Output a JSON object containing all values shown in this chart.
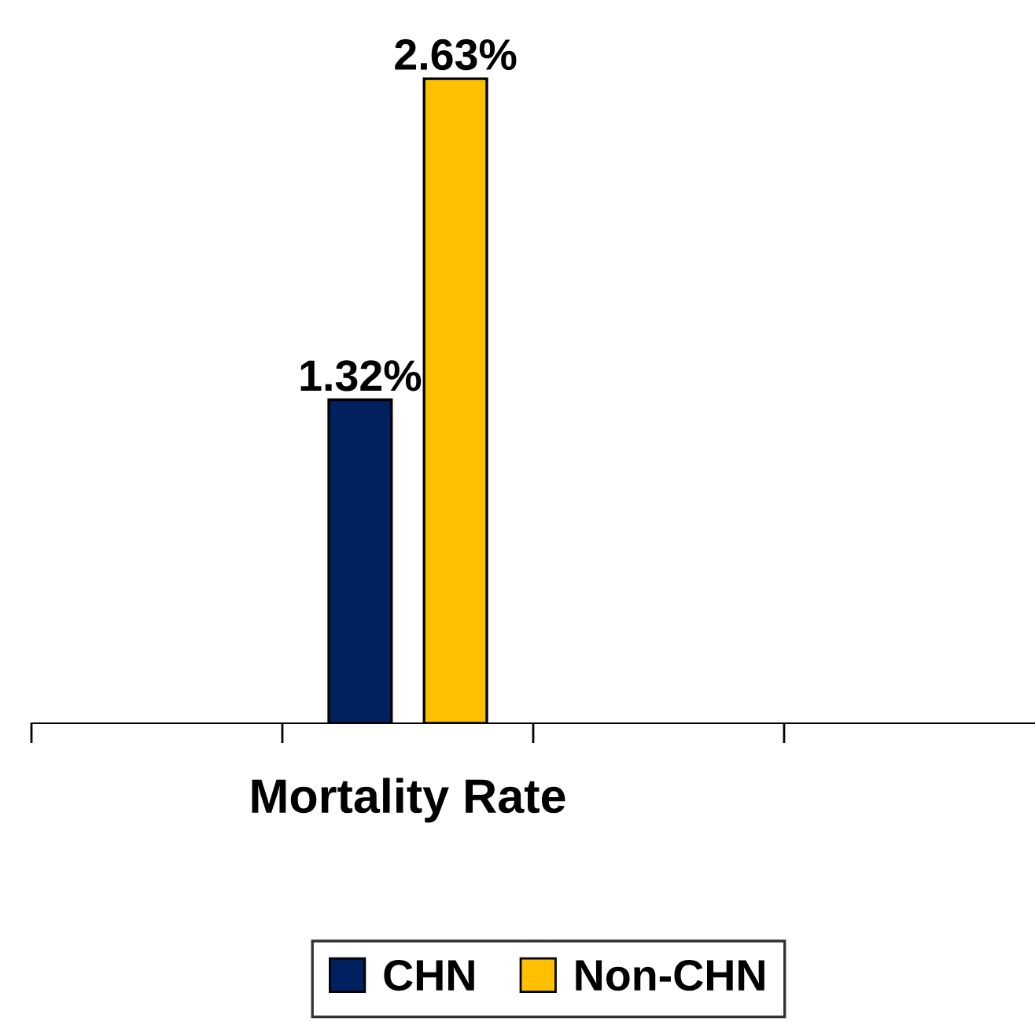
{
  "chart_data": {
    "type": "bar",
    "categories": [
      "Mortality Rate"
    ],
    "series": [
      {
        "name": "CHN",
        "color": "#002060",
        "values": [
          1.32
        ],
        "value_labels": [
          "1.32%"
        ]
      },
      {
        "name": "Non-CHN",
        "color": "#ffc000",
        "values": [
          2.63
        ],
        "value_labels": [
          "2.63%"
        ]
      }
    ],
    "grid": false,
    "legend": "bottom"
  }
}
